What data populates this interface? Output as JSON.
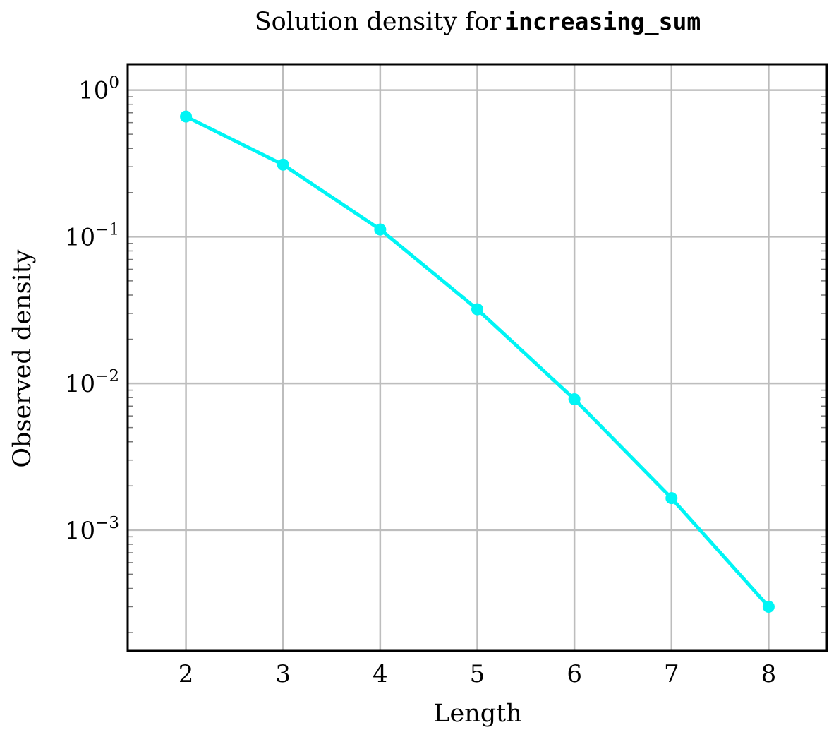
{
  "chart_data": {
    "type": "line",
    "title": "Solution density for",
    "title_code": "increasing_sum",
    "xlabel": "Length",
    "ylabel": "Observed density",
    "x": [
      2,
      3,
      4,
      5,
      6,
      7,
      8
    ],
    "series": [
      {
        "values": [
          0.66,
          0.31,
          0.112,
          0.032,
          0.0078,
          0.00165,
          0.0003
        ],
        "color": "#00f5f5"
      }
    ],
    "xticks": [
      2,
      3,
      4,
      5,
      6,
      7,
      8
    ],
    "xtick_labels": [
      "2",
      "3",
      "4",
      "5",
      "6",
      "7",
      "8"
    ],
    "yticks": [
      1,
      0.1,
      0.01,
      0.001
    ],
    "ytick_labels": [
      {
        "base": "10",
        "exp": "0"
      },
      {
        "base": "10",
        "exp": "−1"
      },
      {
        "base": "10",
        "exp": "−2"
      },
      {
        "base": "10",
        "exp": "−3"
      }
    ],
    "xlim": [
      1.4,
      8.6
    ],
    "ylim": [
      0.00015,
      1.5
    ],
    "yscale": "log",
    "grid": true,
    "legend": "none"
  }
}
